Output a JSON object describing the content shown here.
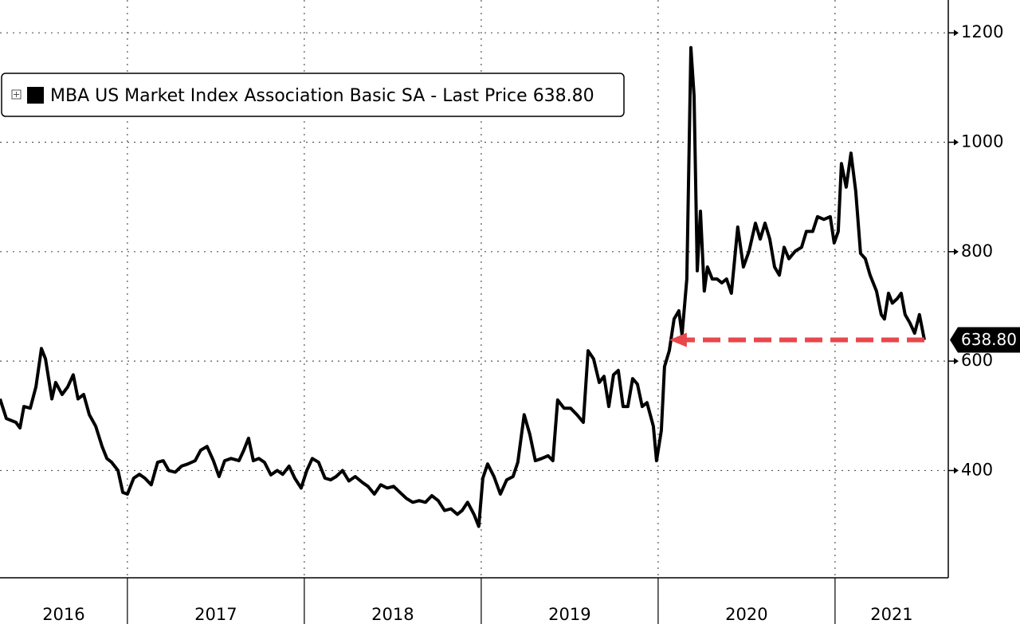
{
  "chart_data": {
    "type": "line",
    "legend": "top-left",
    "xlim": [
      2016.28,
      2021.64
    ],
    "ylim": [
      204,
      1260
    ],
    "xticks": [
      {
        "value": 2016.64,
        "label": "2016"
      },
      {
        "value": 2017.5,
        "label": "2017"
      },
      {
        "value": 2018.5,
        "label": "2018"
      },
      {
        "value": 2019.5,
        "label": "2019"
      },
      {
        "value": 2020.5,
        "label": "2020"
      },
      {
        "value": 2021.32,
        "label": "2021"
      }
    ],
    "xgrid": [
      2017,
      2018,
      2019,
      2020,
      2021
    ],
    "yticks": [
      400,
      600,
      800,
      1000,
      1200
    ],
    "grid": true,
    "last_price": {
      "value": 638.8,
      "label": "638.80"
    },
    "arrow_color": "#e8474c",
    "series": [
      {
        "name": "MBA US Market Index Association Basic SA - Last Price",
        "color": "#000000",
        "x": [
          2016.28,
          2016.316,
          2016.37,
          2016.393,
          2016.415,
          2016.451,
          2016.483,
          2016.514,
          2016.537,
          2016.573,
          2016.595,
          2016.631,
          2016.663,
          2016.694,
          2016.721,
          2016.753,
          2016.785,
          2016.821,
          2016.857,
          2016.884,
          2016.911,
          2016.947,
          2016.974,
          2017.0,
          2017.036,
          2017.068,
          2017.099,
          2017.135,
          2017.171,
          2017.203,
          2017.234,
          2017.27,
          2017.306,
          2017.342,
          2017.383,
          2017.414,
          2017.45,
          2017.486,
          2017.518,
          2017.55,
          2017.586,
          2017.631,
          2017.658,
          2017.685,
          2017.712,
          2017.743,
          2017.775,
          2017.811,
          2017.847,
          2017.878,
          2017.914,
          2017.946,
          2017.982,
          2018.014,
          2018.045,
          2018.081,
          2018.117,
          2018.149,
          2018.18,
          2018.216,
          2018.252,
          2018.288,
          2018.329,
          2018.36,
          2018.396,
          2018.432,
          2018.468,
          2018.505,
          2018.541,
          2018.577,
          2018.613,
          2018.649,
          2018.685,
          2018.721,
          2018.757,
          2018.793,
          2018.829,
          2018.865,
          2018.892,
          2018.923,
          2018.959,
          2018.986,
          2019.009,
          2019.036,
          2019.072,
          2019.108,
          2019.144,
          2019.18,
          2019.207,
          2019.243,
          2019.275,
          2019.306,
          2019.342,
          2019.378,
          2019.405,
          2019.432,
          2019.468,
          2019.505,
          2019.541,
          2019.577,
          2019.604,
          2019.635,
          2019.667,
          2019.694,
          2019.721,
          2019.748,
          2019.775,
          2019.802,
          2019.829,
          2019.856,
          2019.883,
          2019.91,
          2019.937,
          2019.973,
          2019.991,
          2020.018,
          2020.036,
          2020.063,
          2020.09,
          2020.117,
          2020.135,
          2020.162,
          2020.185,
          2020.203,
          2020.221,
          2020.239,
          2020.261,
          2020.279,
          2020.306,
          2020.333,
          2020.36,
          2020.387,
          2020.414,
          2020.45,
          2020.482,
          2020.514,
          2020.55,
          2020.577,
          2020.604,
          2020.631,
          2020.658,
          2020.685,
          2020.712,
          2020.739,
          2020.775,
          2020.811,
          2020.838,
          2020.874,
          2020.901,
          2020.937,
          2020.973,
          2020.995,
          2021.018,
          2021.036,
          2021.063,
          2021.09,
          2021.117,
          2021.144,
          2021.171,
          2021.198,
          2021.234,
          2021.261,
          2021.279,
          2021.302,
          2021.324,
          2021.351,
          2021.374,
          2021.396,
          2021.423,
          2021.45,
          2021.477,
          2021.505
        ],
        "values": [
          531,
          495,
          488,
          478,
          517,
          514,
          553,
          623,
          604,
          531,
          561,
          539,
          553,
          575,
          531,
          539,
          502,
          481,
          444,
          422,
          415,
          400,
          360,
          357,
          386,
          393,
          386,
          374,
          415,
          418,
          400,
          397,
          408,
          412,
          418,
          437,
          444,
          418,
          389,
          418,
          422,
          418,
          437,
          459,
          418,
          422,
          415,
          392,
          400,
          393,
          408,
          386,
          368,
          400,
          422,
          415,
          386,
          383,
          389,
          400,
          381,
          389,
          378,
          371,
          357,
          374,
          368,
          371,
          360,
          349,
          342,
          345,
          342,
          354,
          345,
          327,
          330,
          320,
          327,
          342,
          320,
          298,
          386,
          412,
          389,
          357,
          383,
          389,
          415,
          502,
          466,
          418,
          422,
          427,
          418,
          529,
          514,
          514,
          502,
          488,
          619,
          604,
          561,
          572,
          517,
          575,
          583,
          517,
          517,
          568,
          558,
          517,
          524,
          481,
          418,
          473,
          590,
          619,
          677,
          692,
          648,
          750,
          1173,
          1085,
          765,
          874,
          728,
          772,
          750,
          750,
          743,
          750,
          724,
          845,
          772,
          801,
          852,
          823,
          852,
          823,
          772,
          757,
          808,
          787,
          801,
          808,
          837,
          837,
          864,
          859,
          864,
          816,
          837,
          961,
          918,
          980,
          910,
          797,
          787,
          757,
          728,
          685,
          677,
          724,
          706,
          714,
          724,
          685,
          670,
          651,
          685,
          638.8
        ]
      }
    ]
  }
}
